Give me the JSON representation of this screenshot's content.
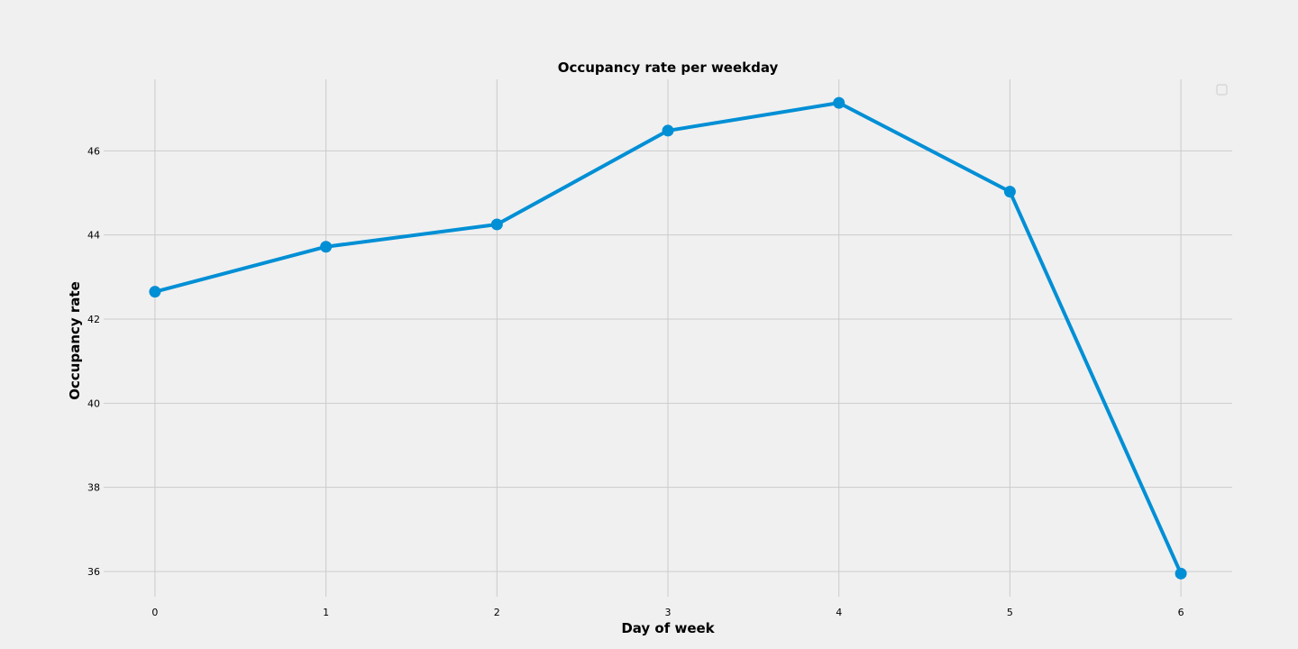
{
  "chart_data": {
    "type": "line",
    "title": "Occupancy rate per weekday",
    "xlabel": "Day of week",
    "ylabel": "Occupancy rate",
    "x": [
      0,
      1,
      2,
      3,
      4,
      5,
      6
    ],
    "x_ticks": [
      "0",
      "1",
      "2",
      "3",
      "4",
      "5",
      "6"
    ],
    "y_ticks": [
      "36",
      "38",
      "40",
      "42",
      "44",
      "46"
    ],
    "xlim": [
      -0.3,
      6.3
    ],
    "ylim": [
      35.4,
      47.7
    ],
    "series": [
      {
        "values": [
          42.65,
          43.72,
          44.25,
          46.48,
          47.14,
          45.03,
          35.95
        ],
        "color": "#008fd5",
        "marker": "circle"
      }
    ],
    "grid": true,
    "legend": {
      "placement": "top-right",
      "entries": []
    }
  }
}
